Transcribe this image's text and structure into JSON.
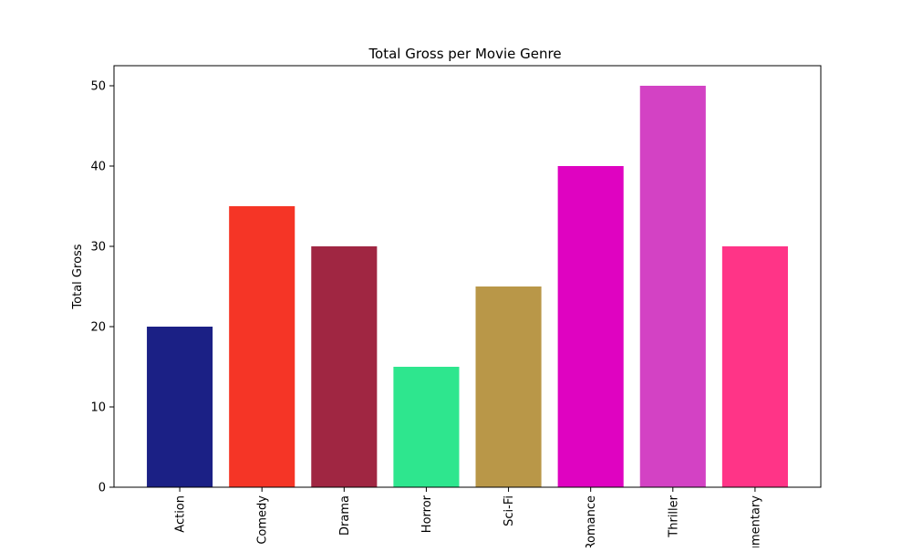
{
  "chart_data": {
    "type": "bar",
    "title": "Total Gross per Movie Genre",
    "xlabel": "",
    "ylabel": "Total Gross",
    "categories": [
      "Action",
      "Comedy",
      "Drama",
      "Horror",
      "Sci-Fi",
      "Romance",
      "Thriller",
      "Documentary"
    ],
    "values": [
      20,
      35,
      30,
      15,
      25,
      40,
      50,
      30
    ],
    "colors": [
      "#1b2085",
      "#f53526",
      "#a02642",
      "#2ee68e",
      "#b99748",
      "#df03c1",
      "#d342c4",
      "#ff3487"
    ],
    "ylim": [
      0,
      52.5
    ],
    "yticks": [
      0,
      10,
      20,
      30,
      40,
      50
    ],
    "grid": false,
    "legend": "none",
    "xtick_rotation": "vertical"
  }
}
